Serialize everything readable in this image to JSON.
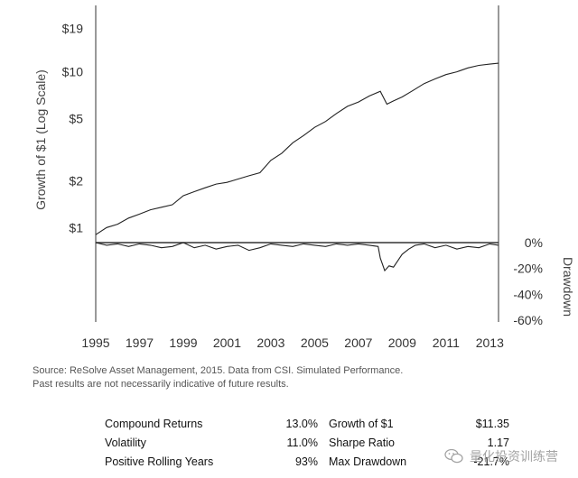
{
  "chart_data": {
    "type": "line",
    "title": "",
    "ylabel": "Growth of $1 (Log Scale)",
    "ylabel_right": "Drawdown",
    "y_scale": "log",
    "ylim": [
      0.8,
      24
    ],
    "yticks": [
      "$1",
      "$2",
      "$5",
      "$10",
      "$19"
    ],
    "ytick_values": [
      1,
      2,
      5,
      10,
      19
    ],
    "drawdown_ylim": [
      -60,
      0
    ],
    "drawdown_ticks": [
      "0%",
      "-20%",
      "-40%",
      "-60%"
    ],
    "drawdown_tick_values": [
      0,
      -20,
      -40,
      -60
    ],
    "xlim": [
      1995,
      2013.4
    ],
    "xticks": [
      "1995",
      "1997",
      "1999",
      "2001",
      "2003",
      "2005",
      "2007",
      "2009",
      "2011",
      "2013"
    ],
    "xtick_values": [
      1995,
      1997,
      1999,
      2001,
      2003,
      2005,
      2007,
      2009,
      2011,
      2013
    ],
    "grid": false,
    "series": [
      {
        "name": "Growth of $1",
        "x": [
          1995.0,
          1995.5,
          1996.0,
          1996.5,
          1997.0,
          1997.5,
          1998.0,
          1998.5,
          1999.0,
          1999.5,
          2000.0,
          2000.5,
          2001.0,
          2001.5,
          2002.0,
          2002.5,
          2003.0,
          2003.5,
          2004.0,
          2004.5,
          2005.0,
          2005.5,
          2006.0,
          2006.5,
          2007.0,
          2007.5,
          2008.0,
          2008.3,
          2008.6,
          2009.0,
          2009.5,
          2010.0,
          2010.5,
          2011.0,
          2011.5,
          2012.0,
          2012.5,
          2013.0,
          2013.4
        ],
        "values": [
          0.9,
          1.0,
          1.05,
          1.15,
          1.22,
          1.3,
          1.35,
          1.4,
          1.6,
          1.7,
          1.8,
          1.9,
          1.95,
          2.05,
          2.15,
          2.25,
          2.7,
          3.0,
          3.5,
          3.9,
          4.4,
          4.8,
          5.4,
          6.0,
          6.4,
          7.0,
          7.5,
          6.2,
          6.5,
          6.9,
          7.6,
          8.4,
          9.0,
          9.6,
          10.0,
          10.6,
          11.0,
          11.2,
          11.35
        ]
      },
      {
        "name": "Drawdown",
        "x": [
          1995.0,
          1995.5,
          1996.0,
          1996.5,
          1997.0,
          1997.5,
          1998.0,
          1998.5,
          1999.0,
          1999.5,
          2000.0,
          2000.5,
          2001.0,
          2001.5,
          2002.0,
          2002.5,
          2003.0,
          2003.5,
          2004.0,
          2004.5,
          2005.0,
          2005.5,
          2006.0,
          2006.5,
          2007.0,
          2007.5,
          2007.9,
          2008.0,
          2008.2,
          2008.4,
          2008.6,
          2008.8,
          2009.0,
          2009.3,
          2009.6,
          2010.0,
          2010.5,
          2011.0,
          2011.5,
          2012.0,
          2012.5,
          2013.0,
          2013.4
        ],
        "values": [
          0,
          -2,
          -1,
          -3,
          -1,
          -2,
          -4,
          -3,
          0,
          -4,
          -2,
          -5,
          -3,
          -2,
          -6,
          -4,
          -1,
          -2,
          -3,
          -1,
          -2,
          -3,
          -1,
          -2,
          -1,
          -2,
          -3,
          -12,
          -21.7,
          -18,
          -19,
          -14,
          -9,
          -5,
          -2,
          -1,
          -4,
          -2,
          -5,
          -3,
          -4,
          -1,
          -2
        ]
      }
    ]
  },
  "source": {
    "line1": "Source: ReSolve Asset Management, 2015. Data from CSI. Simulated Performance.",
    "line2": "Past results are not necessarily indicative of future results."
  },
  "stats": [
    {
      "label": "Compound Returns",
      "value": "13.0%",
      "label2": "Growth of $1",
      "value2": "$11.35"
    },
    {
      "label": "Volatility",
      "value": "11.0%",
      "label2": "Sharpe Ratio",
      "value2": "1.17"
    },
    {
      "label": "Positive Rolling Years",
      "value": "93%",
      "label2": "Max Drawdown",
      "value2": "-21.7%"
    }
  ],
  "watermark": {
    "text": "量化投资训练营",
    "icon": "wechat-icon"
  }
}
